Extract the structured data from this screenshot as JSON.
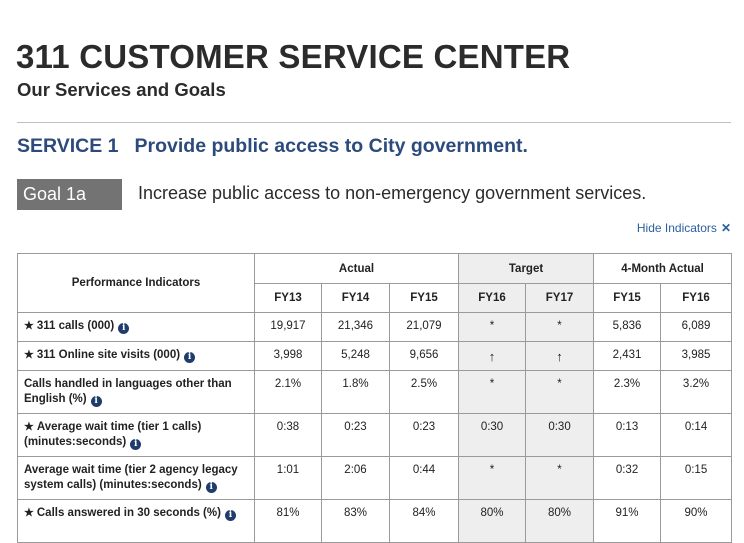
{
  "header": {
    "title": "311 CUSTOMER SERVICE CENTER",
    "subtitle": "Our Services and Goals"
  },
  "service": {
    "label": "SERVICE 1",
    "description": "Provide public access to City government."
  },
  "goal": {
    "label": "Goal 1a",
    "description": "Increase public access to non-emergency government services."
  },
  "hide_indicators": {
    "label": "Hide Indicators",
    "icon": "close-icon"
  },
  "table": {
    "col_header_indicators": "Performance Indicators",
    "groups": {
      "actual": "Actual",
      "target": "Target",
      "four_month": "4-Month Actual"
    },
    "subcols": [
      "FY13",
      "FY14",
      "FY15",
      "FY16",
      "FY17",
      "FY15",
      "FY16"
    ],
    "rows": [
      {
        "star": true,
        "label": "311 calls (000)",
        "values": [
          "19,917",
          "21,346",
          "21,079",
          "*",
          "*",
          "5,836",
          "6,089"
        ]
      },
      {
        "star": true,
        "label": "311 Online site visits (000)",
        "values": [
          "3,998",
          "5,248",
          "9,656",
          "↑",
          "↑",
          "2,431",
          "3,985"
        ]
      },
      {
        "star": false,
        "label": "Calls handled in languages other than English (%)",
        "values": [
          "2.1%",
          "1.8%",
          "2.5%",
          "*",
          "*",
          "2.3%",
          "3.2%"
        ]
      },
      {
        "star": true,
        "label": "Average wait time (tier 1 calls) (minutes:seconds)",
        "values": [
          "0:38",
          "0:23",
          "0:23",
          "0:30",
          "0:30",
          "0:13",
          "0:14"
        ]
      },
      {
        "star": false,
        "label": "Average wait time (tier 2 agency legacy system calls) (minutes:seconds)",
        "values": [
          "1:01",
          "2:06",
          "0:44",
          "*",
          "*",
          "0:32",
          "0:15"
        ]
      },
      {
        "star": true,
        "label": "Calls answered in 30 seconds (%)",
        "values": [
          "81%",
          "83%",
          "84%",
          "80%",
          "80%",
          "91%",
          "90%"
        ]
      }
    ]
  },
  "colors": {
    "service_blue": "#2c4b7c",
    "goal_tag_bg": "#737373",
    "info_icon": "#1f3c6c",
    "target_bg": "#eeeeee",
    "link": "#2c5f9e"
  }
}
